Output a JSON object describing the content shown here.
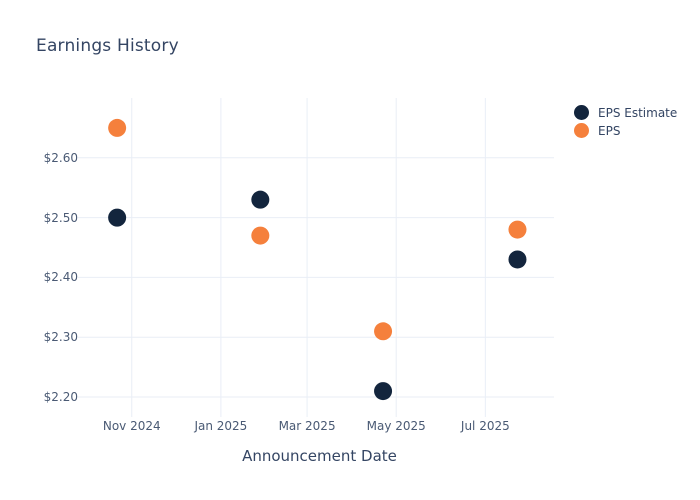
{
  "chart_data": {
    "type": "scatter",
    "title": "Earnings History",
    "xlabel": "Announcement Date",
    "ylabel": "",
    "grid": true,
    "legend_position": "right",
    "x_range": [
      "2024-09-30",
      "2025-08-17"
    ],
    "y_range": [
      2.17,
      2.7
    ],
    "x_ticks": [
      {
        "date": "2024-11-01",
        "label": "Nov 2024"
      },
      {
        "date": "2025-01-01",
        "label": "Jan 2025"
      },
      {
        "date": "2025-03-01",
        "label": "Mar 2025"
      },
      {
        "date": "2025-05-01",
        "label": "May 2025"
      },
      {
        "date": "2025-07-01",
        "label": "Jul 2025"
      }
    ],
    "y_ticks": [
      {
        "value": 2.2,
        "label": "$2.20"
      },
      {
        "value": 2.3,
        "label": "$2.30"
      },
      {
        "value": 2.4,
        "label": "$2.40"
      },
      {
        "value": 2.5,
        "label": "$2.50"
      },
      {
        "value": 2.6,
        "label": "$2.60"
      }
    ],
    "series": [
      {
        "name": "EPS Estimate",
        "color": "#13253d",
        "marker": "circle",
        "points": [
          {
            "date": "2024-10-22",
            "value": 2.5
          },
          {
            "date": "2025-01-28",
            "value": 2.53
          },
          {
            "date": "2025-04-22",
            "value": 2.21
          },
          {
            "date": "2025-07-23",
            "value": 2.43
          }
        ]
      },
      {
        "name": "EPS",
        "color": "#f5803c",
        "marker": "circle",
        "points": [
          {
            "date": "2024-10-22",
            "value": 2.65
          },
          {
            "date": "2025-01-28",
            "value": 2.47
          },
          {
            "date": "2025-04-22",
            "value": 2.31
          },
          {
            "date": "2025-07-23",
            "value": 2.48
          }
        ]
      }
    ]
  },
  "colors": {
    "background": "#ffffff",
    "title_text": "#344563",
    "axis_tick_text": "#4a5a74",
    "gridline": "#e9eef6",
    "eps_estimate": "#13253d",
    "eps_actual": "#f5803c"
  }
}
